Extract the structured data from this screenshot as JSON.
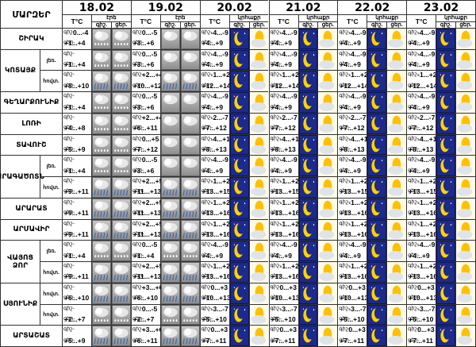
{
  "header": {
    "region_label": "ՄԱՐԶԵՐ",
    "temp_label": "T°C",
    "precip_label_short": "էրե",
    "precip_label_day": "կրհաքր",
    "day_label": "ցեր.",
    "night_label": "գիշ.",
    "dates": [
      "18.02",
      "19.02",
      "20.02",
      "21.02",
      "22.02",
      "23.02"
    ]
  },
  "labels": {
    "night": "գիշ-",
    "day": "ցեր-",
    "sub_night": "լեռ.",
    "sub_day": "հովտ."
  },
  "icons": {
    "cloud": "overcast-cloud-icon",
    "rain": "rain-cloud-icon",
    "snow": "snow-cloud-icon",
    "moon": "crescent-moon-icon",
    "sun": "sun-cloud-icon"
  },
  "colors": {
    "night_bg": "#1c2a8a",
    "moon": "#ffd200",
    "cloud_gray": "#a8a8a8",
    "sun": "#ffc000"
  },
  "regions": [
    {
      "name": "ՇԻՐԱԿ",
      "rows": [
        {
          "night": [
            "0...-4",
            "0...-5",
            "-4...-9",
            "-4...-9",
            "-4...-9",
            "-4...-9"
          ],
          "day": [
            "+1...+4",
            "+3...+6",
            "+4...+9",
            "+4...+9",
            "+4...+9",
            "+4...+9"
          ],
          "icons": [
            "snow",
            "cloud",
            "moon",
            "moon",
            "moon",
            "moon"
          ]
        }
      ]
    },
    {
      "name": "ԿՈՏԱՅՔ",
      "rows": [
        {
          "sub": "լեռ.",
          "night": [
            "",
            "0...-5",
            "-4...-9",
            "-4...-9",
            "-4...-9",
            "-4...-9"
          ],
          "day": [
            "+1...+4",
            "+3...+6",
            "+4...+9",
            "+4...+9",
            "+4...+9",
            "+4...+9"
          ],
          "icons": [
            "snow",
            "cloud",
            "moon",
            "moon",
            "moon",
            "moon"
          ]
        },
        {
          "sub": "հովտ.",
          "night": [
            "",
            "+2...+4",
            "-1...+2",
            "-1...+2",
            "-1...+2",
            "-1...+2"
          ],
          "day": [
            "+8...+10",
            "+10...+12",
            "+12...+14",
            "+12...+14",
            "+12...+14",
            "+12...+14"
          ],
          "icons": [
            "rain",
            "rain",
            "moon",
            "moon",
            "moon",
            "moon"
          ]
        }
      ]
    },
    {
      "name": "ԳԵՂԱՐՔՈՒՆԻՔ",
      "rows": [
        {
          "night": [
            "",
            "0...-5",
            "-4...-9",
            "-4...-9",
            "-4...-9",
            "-4...-9"
          ],
          "day": [
            "+1...+4",
            "+3...+6",
            "+4...+9",
            "+4...+9",
            "+4...+9",
            "+4...+9"
          ],
          "icons": [
            "snow",
            "cloud",
            "moon",
            "moon",
            "moon",
            "moon"
          ]
        }
      ]
    },
    {
      "name": "ԼՈՌԻ",
      "rows": [
        {
          "night": [
            "",
            "+2...+4",
            "-2...-7",
            "-2...-7",
            "-2...-7",
            "-2...-7"
          ],
          "day": [
            "+4...+8",
            "+6...+11",
            "+7...+12",
            "+7...+12",
            "+7...+12",
            "+7...+12"
          ],
          "icons": [
            "snow",
            "cloud",
            "moon",
            "moon",
            "moon",
            "moon"
          ]
        }
      ]
    },
    {
      "name": "ՏԱՎՈՒՇ",
      "rows": [
        {
          "night": [
            "",
            "0...+5",
            "-4...+1",
            "-4...+1",
            "-4...+1",
            "-4...+1"
          ],
          "day": [
            "+5...+9",
            "+7...+12",
            "+8...+13",
            "+8...+13",
            "+8...+13",
            "+8...+13"
          ],
          "icons": [
            "snow",
            "cloud",
            "moon",
            "moon",
            "moon",
            "moon"
          ]
        }
      ]
    },
    {
      "name": "ԱՐԱԳԱԾՈՏՆ",
      "rows": [
        {
          "sub": "լեռ.",
          "night": [
            "",
            "0...-5",
            "-4...-9",
            "-4...-9",
            "-4...-9",
            "-4...-9"
          ],
          "day": [
            "+1...+4",
            "+3...+6",
            "+4...+9",
            "+4...+9",
            "+4...+9",
            "+4...+9"
          ],
          "icons": [
            "snow",
            "cloud",
            "moon",
            "moon",
            "moon",
            "moon"
          ]
        },
        {
          "sub": "հովտ.",
          "night": [
            "",
            "+2...+5",
            "-1...+2",
            "-1...+2",
            "-1...+2",
            "-1...+2"
          ],
          "day": [
            "+9...+11",
            "+11...+13",
            "+13...+15",
            "+13...+15",
            "+13...+15",
            "+13...+15"
          ],
          "icons": [
            "rain",
            "rain",
            "moon",
            "moon",
            "moon",
            "moon"
          ]
        }
      ]
    },
    {
      "name": "ԱՐԱՐԱՏ",
      "rows": [
        {
          "night": [
            "",
            "+2...+5",
            "-1...+2",
            "-1...+2",
            "-1...+2",
            "-1...+2"
          ],
          "day": [
            "+9...+11",
            "+11...+13",
            "+13...+16",
            "+13...+16",
            "+13...+16",
            "+13...+16"
          ],
          "icons": [
            "rain",
            "rain",
            "moon",
            "moon",
            "moon",
            "moon"
          ]
        }
      ]
    },
    {
      "name": "ԱՐՄԱՎԻՐ",
      "rows": [
        {
          "night": [
            "",
            "+2...+5",
            "-1...+2",
            "-1...+2",
            "-1...+2",
            "-1...+2"
          ],
          "day": [
            "+9...+11",
            "+11...+13",
            "+13...+16",
            "+13...+16",
            "+13...+16",
            "+13...+16"
          ],
          "icons": [
            "rain",
            "rain",
            "moon",
            "moon",
            "moon",
            "moon"
          ]
        }
      ]
    },
    {
      "name": "ՎԱՅՈՑ ՁՈՐ",
      "rows": [
        {
          "sub": "լեռ.",
          "night": [
            "",
            "0...-5",
            "-4...-9",
            "-4...-9",
            "-4...-9",
            "-4...-9"
          ],
          "day": [
            "+1...+4",
            "+1...+4",
            "+4...+9",
            "+4...+9",
            "+4...+9",
            "+4...+9"
          ],
          "icons": [
            "snow",
            "snow",
            "moon",
            "moon",
            "moon",
            "moon"
          ]
        },
        {
          "sub": "հովտ.",
          "night": [
            "",
            "+2...+5",
            "-1...+2",
            "-1...+2",
            "-1...+2",
            "-1...+2"
          ],
          "day": [
            "+9...+11",
            "+11...+13",
            "+13...+16",
            "+13...+16",
            "+13...+16",
            "+13...+16"
          ],
          "icons": [
            "rain",
            "rain",
            "moon",
            "moon",
            "moon",
            "moon"
          ]
        }
      ]
    },
    {
      "name": "ՍՅՈՒՆԻՔ",
      "rows": [
        {
          "sub": "հովտ.",
          "night": [
            "",
            "+3...+6",
            "0...+3",
            "0...+3",
            "0...+3",
            "0...+3"
          ],
          "day": [
            "+6...+10",
            "+6...+10",
            "+10...+13",
            "+10...+13",
            "+10...+13",
            "+10...+13"
          ],
          "icons": [
            "rain",
            "rain",
            "moon",
            "moon",
            "moon",
            "moon"
          ]
        },
        {
          "sub": "հովտ.",
          "night": [
            "",
            "0...-5",
            "-3...-7",
            "-3...-7",
            "-3...-7",
            "-3...-7"
          ],
          "day": [
            "+2...+7",
            "+2...+7",
            "+5...+10",
            "+5...+10",
            "+5...+10",
            "+5...+10"
          ],
          "icons": [
            "snow",
            "snow",
            "moon",
            "moon",
            "moon",
            "moon"
          ]
        }
      ]
    },
    {
      "name": "ԱՐՏԱՇԱՏ",
      "rows": [
        {
          "night": [
            "",
            "+3...+6",
            "0...+3",
            "0...+3",
            "0...+3",
            "0...+3"
          ],
          "day": [
            "+5...+9",
            "+6...+11",
            "+7...+11",
            "+7...+11",
            "+7...+11",
            "+7...+11"
          ],
          "icons": [
            "rain",
            "rain",
            "moon",
            "moon",
            "moon",
            "moon"
          ]
        }
      ]
    }
  ]
}
